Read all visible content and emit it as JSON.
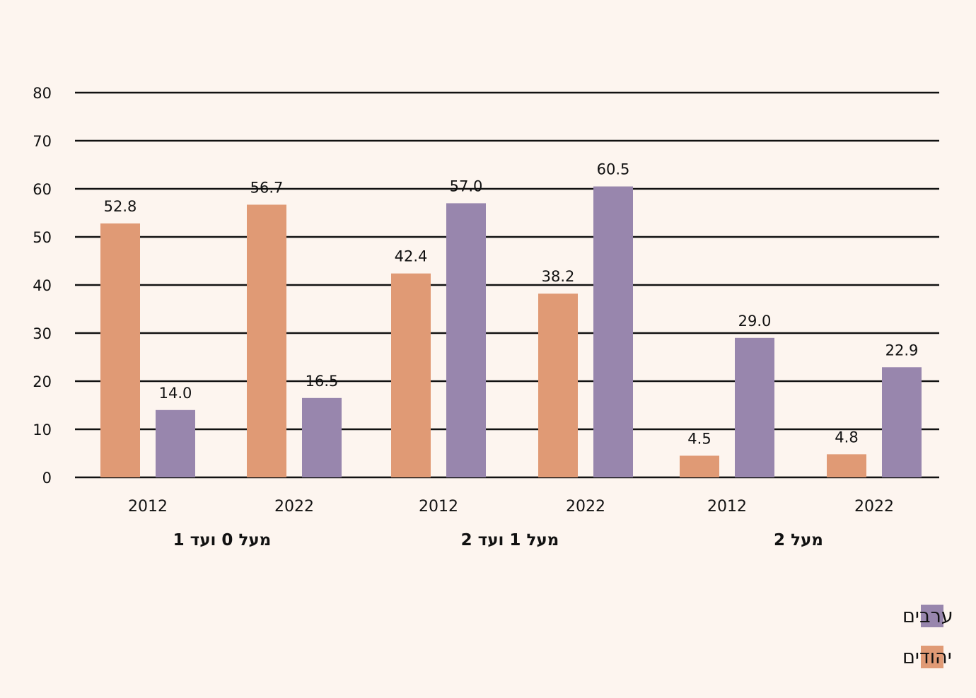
{
  "chart_data": {
    "type": "bar",
    "title": "",
    "xlabel": "",
    "ylabel": "",
    "ylim": [
      0,
      80
    ],
    "yticks": [
      0,
      10,
      20,
      30,
      40,
      50,
      60,
      70,
      80
    ],
    "grid": true,
    "legend_position": "bottom-right",
    "groups": [
      {
        "label": "מעל 0 ועד 1",
        "categories": [
          {
            "label": "2012",
            "values": {
              "jews": 52.8,
              "arabs": 14.0
            },
            "value_labels": {
              "jews": "52.8",
              "arabs": "14.0"
            }
          },
          {
            "label": "2022",
            "values": {
              "jews": 56.7,
              "arabs": 16.5
            },
            "value_labels": {
              "jews": "56.7",
              "arabs": "16.5"
            }
          }
        ]
      },
      {
        "label": "מעל 1 ועד 2",
        "categories": [
          {
            "label": "2012",
            "values": {
              "jews": 42.4,
              "arabs": 57.0
            },
            "value_labels": {
              "jews": "42.4",
              "arabs": "57.0"
            }
          },
          {
            "label": "2022",
            "values": {
              "jews": 38.2,
              "arabs": 60.5
            },
            "value_labels": {
              "jews": "38.2",
              "arabs": "60.5"
            }
          }
        ]
      },
      {
        "label": "מעל 2",
        "categories": [
          {
            "label": "2012",
            "values": {
              "jews": 4.5,
              "arabs": 29.0
            },
            "value_labels": {
              "jews": "4.5",
              "arabs": "29.0"
            }
          },
          {
            "label": "2022",
            "values": {
              "jews": 4.8,
              "arabs": 22.9
            },
            "value_labels": {
              "jews": "4.8",
              "arabs": "22.9"
            }
          }
        ]
      }
    ],
    "series": [
      {
        "key": "jews",
        "name": "יהודים",
        "color": "#e09a75"
      },
      {
        "key": "arabs",
        "name": "ערבים",
        "color": "#9886ad"
      }
    ],
    "legend_order": [
      "arabs",
      "jews"
    ]
  },
  "colors": {
    "background": "#fdf5ef",
    "gridline": "#111111",
    "text": "#111111"
  }
}
